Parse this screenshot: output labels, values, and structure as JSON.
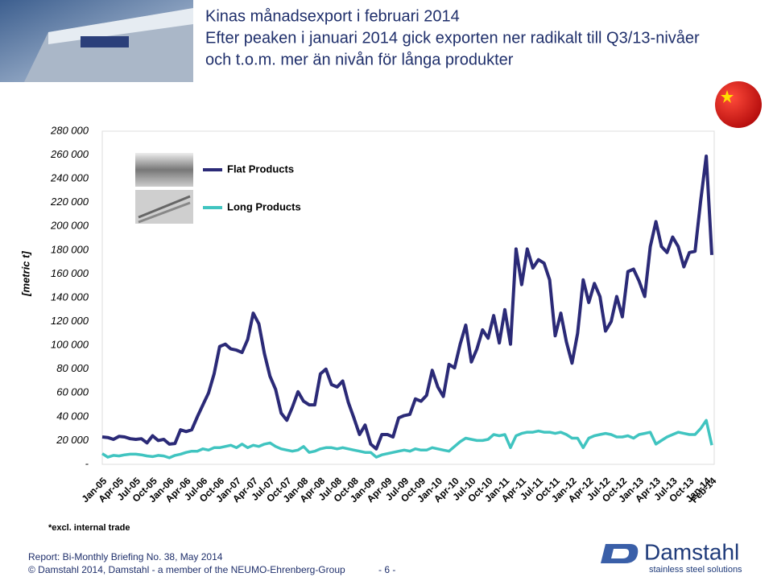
{
  "chart_data": {
    "type": "line",
    "title": [
      "Kinas månadsexport i februari 2014",
      "Efter peaken i januari 2014 gick exporten ner radikalt till Q3/13-nivåer",
      "och t.o.m. mer än nivån för långa produkter"
    ],
    "y_label": "[metric t]",
    "footnote": "*excl. internal trade",
    "categories": [
      "Jan-05",
      null,
      null,
      "Apr-05",
      null,
      null,
      "Jul-05",
      null,
      null,
      "Oct-05",
      null,
      null,
      "Jan-06",
      null,
      null,
      "Apr-06",
      null,
      null,
      "Jul-06",
      null,
      null,
      "Oct-06",
      null,
      null,
      "Jan-07",
      null,
      null,
      "Apr-07",
      null,
      null,
      "Jul-07",
      null,
      null,
      "Oct-07",
      null,
      null,
      "Jan-08",
      null,
      null,
      "Apr-08",
      null,
      null,
      "Jul-08",
      null,
      null,
      "Oct-08",
      null,
      null,
      "Jan-09",
      null,
      null,
      "Apr-09",
      null,
      null,
      "Jul-09",
      null,
      null,
      "Oct-09",
      null,
      null,
      "Jan-10",
      null,
      null,
      "Apr-10",
      null,
      null,
      "Jul-10",
      null,
      null,
      "Oct-10",
      null,
      null,
      "Jan-11",
      null,
      null,
      "Apr-11",
      null,
      null,
      "Jul-11",
      null,
      null,
      "Oct-11",
      null,
      null,
      "Jan-12",
      null,
      null,
      "Apr-12",
      null,
      null,
      "Jul-12",
      null,
      null,
      "Oct-12",
      null,
      null,
      "Jan-13",
      null,
      null,
      "Apr-13",
      null,
      null,
      "Jul-13",
      null,
      null,
      "Oct-13",
      null,
      null,
      "Jan-14",
      "Feb-14"
    ],
    "series": [
      {
        "name": "Flat Products",
        "color": "#2b2a77",
        "values": [
          23000,
          22500,
          21000,
          23500,
          23000,
          21500,
          21000,
          21500,
          18000,
          24000,
          20000,
          21000,
          17000,
          17500,
          29000,
          27500,
          29000,
          40000,
          50000,
          60000,
          76000,
          99000,
          101000,
          97000,
          96000,
          94000,
          105000,
          127000,
          118000,
          93000,
          74000,
          63000,
          43000,
          37000,
          48000,
          61000,
          53000,
          50000,
          50000,
          76000,
          80000,
          67000,
          65000,
          70000,
          52000,
          39000,
          25000,
          33000,
          17000,
          13000,
          25000,
          25000,
          23000,
          39000,
          41000,
          42000,
          55000,
          53000,
          58000,
          79000,
          65000,
          57000,
          84000,
          81000,
          101000,
          117000,
          86000,
          97000,
          113000,
          106000,
          125000,
          102000,
          130000,
          101000,
          181000,
          151000,
          181000,
          165000,
          172000,
          169000,
          155000,
          108000,
          127000,
          103000,
          85000,
          110000,
          155000,
          136000,
          152000,
          141000,
          112000,
          120000,
          141000,
          124000,
          162000,
          164000,
          154000,
          141000,
          183000,
          204000,
          183000,
          178000,
          191000,
          183000,
          166000,
          178000,
          179000,
          221000,
          259000,
          176000
        ]
      },
      {
        "name": "Long Products",
        "color": "#40c4c0",
        "values": [
          9000,
          6000,
          7500,
          7000,
          8000,
          8500,
          8500,
          8000,
          7000,
          6500,
          7500,
          7000,
          5500,
          7500,
          8500,
          10000,
          11000,
          11000,
          13000,
          12000,
          14000,
          14000,
          15000,
          16000,
          14000,
          17000,
          14000,
          16000,
          15000,
          17000,
          18000,
          15000,
          13000,
          12000,
          11000,
          12000,
          15000,
          10000,
          11000,
          13000,
          14000,
          14000,
          13000,
          14000,
          13000,
          12000,
          11000,
          10000,
          10000,
          6000,
          8000,
          9000,
          10000,
          11000,
          12000,
          11000,
          13000,
          12000,
          12000,
          14000,
          13000,
          12000,
          11000,
          15000,
          19000,
          22000,
          21000,
          20000,
          20000,
          21000,
          25000,
          24000,
          25000,
          14000,
          24000,
          26000,
          27000,
          27000,
          28000,
          27000,
          27000,
          26000,
          27000,
          25000,
          22000,
          22000,
          14000,
          22000,
          24000,
          25000,
          26000,
          25000,
          23000,
          23000,
          24000,
          22000,
          25000,
          26000,
          27000,
          17000,
          20000,
          23000,
          25000,
          27000,
          26000,
          25000,
          25000,
          30000,
          37000,
          16000
        ]
      }
    ],
    "ylim": [
      0,
      280000
    ],
    "yticks": [
      {
        "value": 0,
        "label": "-"
      },
      {
        "value": 20000,
        "label": "20 000"
      },
      {
        "value": 40000,
        "label": "40 000"
      },
      {
        "value": 60000,
        "label": "60 000"
      },
      {
        "value": 80000,
        "label": "80 000"
      },
      {
        "value": 100000,
        "label": "100 000"
      },
      {
        "value": 120000,
        "label": "120 000"
      },
      {
        "value": 140000,
        "label": "140 000"
      },
      {
        "value": 160000,
        "label": "160 000"
      },
      {
        "value": 180000,
        "label": "180 000"
      },
      {
        "value": 200000,
        "label": "200 000"
      },
      {
        "value": 220000,
        "label": "220 000"
      },
      {
        "value": 240000,
        "label": "240 000"
      },
      {
        "value": 260000,
        "label": "260 000"
      },
      {
        "value": 280000,
        "label": "280 000"
      }
    ],
    "grid": false
  },
  "footer": {
    "report": "Report: Bi-Monthly Briefing No. 38, May 2014",
    "copyright": "© Damstahl 2014, Damstahl - a member of the NEUMO-Ehrenberg-Group",
    "page": "- 6 -",
    "logo": "Damstahl",
    "tagline": "stainless steel solutions"
  }
}
